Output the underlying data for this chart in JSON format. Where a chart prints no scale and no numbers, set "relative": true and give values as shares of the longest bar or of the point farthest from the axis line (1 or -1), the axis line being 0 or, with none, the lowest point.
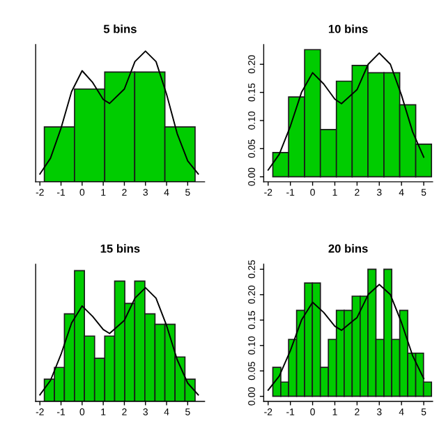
{
  "chart_data": [
    {
      "type": "histogram",
      "title": "5 bins",
      "relative": true,
      "bins": [
        -1.79,
        -0.36,
        1.07,
        2.49,
        3.92,
        5.35
      ],
      "values": [
        0.42,
        0.71,
        0.84,
        0.84,
        0.42
      ],
      "color": "#00cc00",
      "series": [
        {
          "type": "line",
          "color": "#000000",
          "x": [
            -2,
            -1.5,
            -1,
            -0.5,
            0,
            0.5,
            1,
            1.3,
            2,
            2.5,
            3,
            3.5,
            4,
            4.5,
            5,
            5.5
          ],
          "values": [
            0.06,
            0.18,
            0.41,
            0.69,
            0.85,
            0.76,
            0.63,
            0.6,
            0.71,
            0.92,
            1.0,
            0.92,
            0.67,
            0.37,
            0.16,
            0.06
          ]
        }
      ],
      "xlim": [
        -2.2,
        5.8
      ],
      "xticks": [
        -2,
        -1,
        0,
        1,
        2,
        3,
        4,
        5
      ],
      "tick_labels": "x",
      "grid": false
    },
    {
      "type": "histogram",
      "title": "10 bins",
      "bins": [
        -1.79,
        -1.08,
        -0.36,
        0.35,
        1.07,
        1.78,
        2.49,
        3.21,
        3.92,
        4.64,
        5.35
      ],
      "values": [
        0.043,
        0.142,
        0.226,
        0.084,
        0.17,
        0.198,
        0.185,
        0.185,
        0.128,
        0.058
      ],
      "color": "#00cc00",
      "series": [
        {
          "type": "line",
          "color": "#000000",
          "x": [
            -2,
            -1.5,
            -1,
            -0.5,
            0,
            0.5,
            1,
            1.3,
            2,
            2.5,
            3,
            3.5,
            4,
            4.5,
            5
          ],
          "values": [
            0.012,
            0.04,
            0.09,
            0.15,
            0.185,
            0.165,
            0.138,
            0.13,
            0.155,
            0.2,
            0.22,
            0.2,
            0.145,
            0.08,
            0.035
          ]
        }
      ],
      "xlim": [
        -2.2,
        5.4
      ],
      "xticks": [
        -2,
        -1,
        0,
        1,
        2,
        3,
        4,
        5
      ],
      "ylim": [
        -0.009,
        0.235
      ],
      "yticks": [
        {
          "value": 0,
          "label": "0.00"
        },
        {
          "value": 0.05,
          "label": "0.05"
        },
        {
          "value": 0.1,
          "label": "0.10"
        },
        {
          "value": 0.15,
          "label": "0.15"
        },
        {
          "value": 0.2,
          "label": "0.20"
        }
      ],
      "grid": false
    },
    {
      "type": "histogram",
      "title": "15 bins",
      "relative": true,
      "bins": [
        -1.79,
        -1.31,
        -0.84,
        -0.36,
        0.11,
        0.59,
        1.07,
        1.54,
        2.02,
        2.49,
        2.97,
        3.45,
        3.92,
        4.4,
        4.87,
        5.35
      ],
      "values": [
        0.17,
        0.26,
        0.67,
        1.0,
        0.5,
        0.33,
        0.5,
        0.92,
        0.75,
        0.92,
        0.67,
        0.59,
        0.59,
        0.34,
        0.17
      ],
      "color": "#00cc00",
      "series": [
        {
          "type": "line",
          "color": "#000000",
          "x": [
            -2,
            -1.5,
            -1,
            -0.5,
            0,
            0.5,
            1,
            1.3,
            2,
            2.5,
            3,
            3.5,
            4,
            4.5,
            5,
            5.5
          ],
          "values": [
            0.05,
            0.16,
            0.36,
            0.6,
            0.73,
            0.65,
            0.55,
            0.52,
            0.62,
            0.79,
            0.87,
            0.79,
            0.58,
            0.32,
            0.14,
            0.05
          ]
        }
      ],
      "xlim": [
        -2.2,
        5.8
      ],
      "xticks": [
        -2,
        -1,
        0,
        1,
        2,
        3,
        4,
        5
      ],
      "tick_labels": "x",
      "grid": false
    },
    {
      "type": "histogram",
      "title": "20 bins",
      "bins": [
        -1.79,
        -1.43,
        -1.08,
        -0.72,
        -0.36,
        -0.01,
        0.35,
        0.71,
        1.07,
        1.42,
        1.78,
        2.14,
        2.49,
        2.85,
        3.21,
        3.56,
        3.92,
        4.28,
        4.64,
        4.99,
        5.35
      ],
      "values": [
        0.057,
        0.028,
        0.112,
        0.169,
        0.223,
        0.223,
        0.057,
        0.112,
        0.169,
        0.169,
        0.197,
        0.197,
        0.25,
        0.112,
        0.25,
        0.112,
        0.169,
        0.085,
        0.085,
        0.028
      ],
      "color": "#00cc00",
      "series": [
        {
          "type": "line",
          "color": "#000000",
          "x": [
            -2,
            -1.5,
            -1,
            -0.5,
            0,
            0.5,
            1,
            1.3,
            2,
            2.5,
            3,
            3.5,
            4,
            4.5,
            5
          ],
          "values": [
            0.012,
            0.04,
            0.09,
            0.15,
            0.185,
            0.165,
            0.138,
            0.13,
            0.155,
            0.2,
            0.22,
            0.2,
            0.145,
            0.08,
            0.035
          ]
        }
      ],
      "xlim": [
        -2.2,
        5.4
      ],
      "xticks": [
        -2,
        -1,
        0,
        1,
        2,
        3,
        4,
        5
      ],
      "ylim": [
        -0.01,
        0.26
      ],
      "yticks": [
        {
          "value": 0,
          "label": "0.00"
        },
        {
          "value": 0.05,
          "label": "0.05"
        },
        {
          "value": 0.1,
          "label": "0.10"
        },
        {
          "value": 0.15,
          "label": "0.15"
        },
        {
          "value": 0.2,
          "label": "0.20"
        },
        {
          "value": 0.25,
          "label": "0.25"
        }
      ],
      "grid": false
    }
  ]
}
